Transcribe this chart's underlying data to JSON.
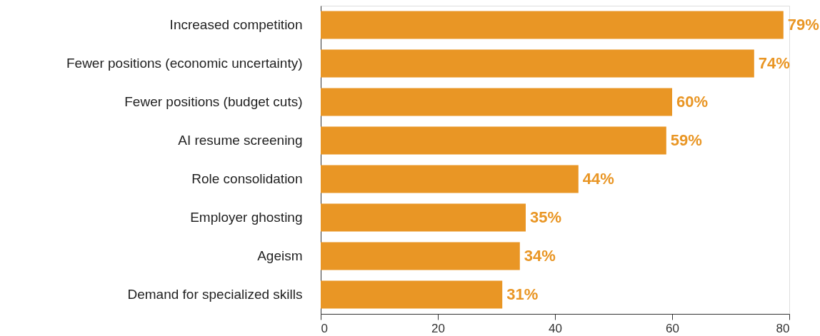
{
  "chart_data": {
    "type": "bar",
    "orientation": "horizontal",
    "categories": [
      "Increased competition",
      "Fewer positions (economic uncertainty)",
      "Fewer positions (budget cuts)",
      "AI resume screening",
      "Role consolidation",
      "Employer ghosting",
      "Ageism",
      "Demand for specialized skills"
    ],
    "values": [
      79,
      74,
      60,
      59,
      44,
      35,
      34,
      31
    ],
    "value_labels": [
      "79%",
      "74%",
      "60%",
      "59%",
      "44%",
      "35%",
      "34%",
      "31%"
    ],
    "color": "#e99625",
    "xlim": [
      0,
      80
    ],
    "xticks": [
      0,
      20,
      40,
      60,
      80
    ],
    "grid": false
  }
}
